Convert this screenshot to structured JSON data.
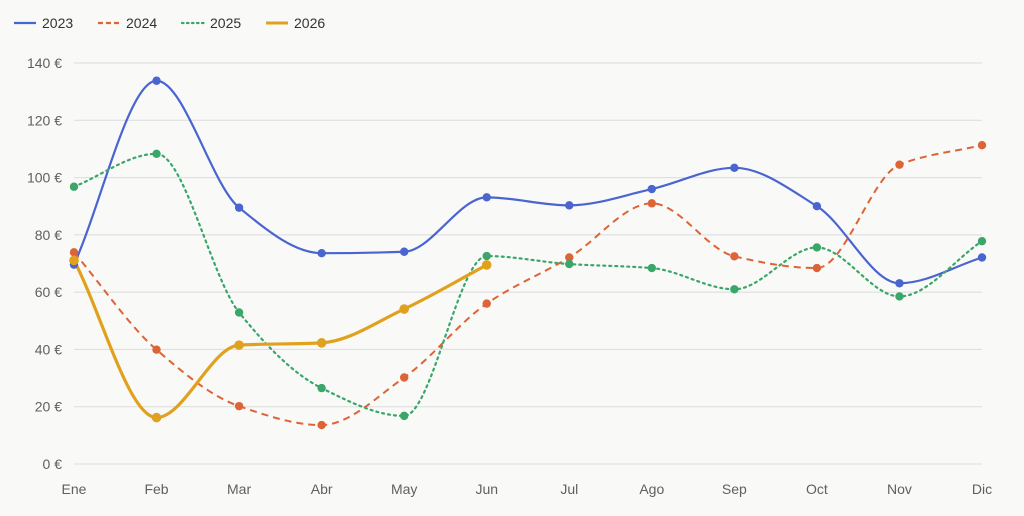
{
  "chart_data": {
    "type": "line",
    "title": "",
    "xlabel": "",
    "ylabel": "",
    "categories": [
      "Ene",
      "Feb",
      "Mar",
      "Abr",
      "May",
      "Jun",
      "Jul",
      "Ago",
      "Sep",
      "Oct",
      "Nov",
      "Dic"
    ],
    "ylim": [
      0,
      140
    ],
    "yticks": [
      0,
      20,
      40,
      60,
      80,
      100,
      120,
      140
    ],
    "ytick_labels": [
      "0 €",
      "20 €",
      "40 €",
      "60 €",
      "80 €",
      "100 €",
      "120 €",
      "140 €"
    ],
    "grid": true,
    "legend_position": "top-left",
    "smooth": true,
    "series": [
      {
        "name": "2023",
        "color": "#4a64d0",
        "style": "solid",
        "width": 2.2,
        "values": [
          69.6,
          133.8,
          89.5,
          73.6,
          74.1,
          93.1,
          90.3,
          96.0,
          103.4,
          90.0,
          63.1,
          72.1
        ]
      },
      {
        "name": "2024",
        "color": "#dc6436",
        "style": "dashed",
        "width": 2.0,
        "values": [
          73.9,
          39.9,
          20.2,
          13.6,
          30.2,
          56.0,
          72.1,
          91.0,
          72.5,
          68.4,
          104.5,
          111.3
        ]
      },
      {
        "name": "2025",
        "color": "#3aa66a",
        "style": "dotted",
        "width": 2.2,
        "values": [
          96.8,
          108.3,
          52.9,
          26.5,
          16.8,
          72.6,
          69.8,
          68.4,
          61.0,
          75.6,
          58.5,
          77.8
        ]
      },
      {
        "name": "2026",
        "color": "#e0a21e",
        "style": "solid",
        "width": 3.2,
        "values": [
          71.1,
          16.2,
          41.5,
          42.3,
          54.1,
          69.5,
          null,
          null,
          null,
          null,
          null,
          null
        ]
      }
    ]
  }
}
